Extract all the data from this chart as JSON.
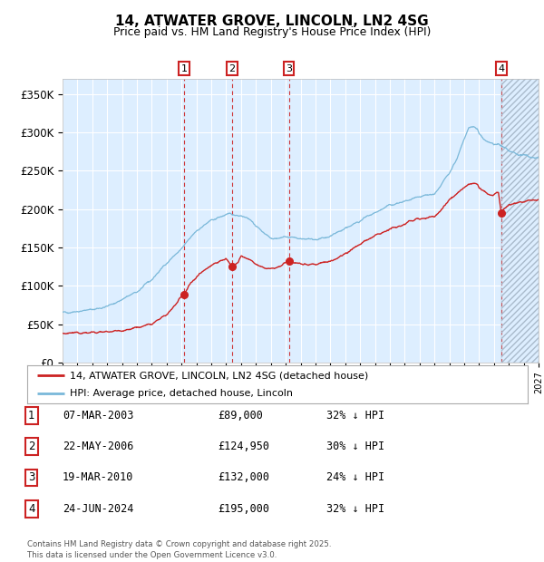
{
  "title": "14, ATWATER GROVE, LINCOLN, LN2 4SG",
  "subtitle": "Price paid vs. HM Land Registry's House Price Index (HPI)",
  "hpi_color": "#7ab8d9",
  "price_color": "#cc2222",
  "background_color": "#ddeeff",
  "grid_color": "#ffffff",
  "xlim_start": 1995,
  "xlim_end": 2027,
  "ylim_min": 0,
  "ylim_max": 370000,
  "yticks": [
    0,
    50000,
    100000,
    150000,
    200000,
    250000,
    300000,
    350000
  ],
  "ytick_labels": [
    "£0",
    "£50K",
    "£100K",
    "£150K",
    "£200K",
    "£250K",
    "£300K",
    "£350K"
  ],
  "sale_dates": [
    2003.18,
    2006.38,
    2010.21,
    2024.48
  ],
  "sale_prices": [
    89000,
    124950,
    132000,
    195000
  ],
  "sale_labels": [
    "1",
    "2",
    "3",
    "4"
  ],
  "sale_date_strs": [
    "07-MAR-2003",
    "22-MAY-2006",
    "19-MAR-2010",
    "24-JUN-2024"
  ],
  "sale_price_strs": [
    "£89,000",
    "£124,950",
    "£132,000",
    "£195,000"
  ],
  "sale_hpi_strs": [
    "32% ↓ HPI",
    "30% ↓ HPI",
    "24% ↓ HPI",
    "32% ↓ HPI"
  ],
  "legend_line1": "14, ATWATER GROVE, LINCOLN, LN2 4SG (detached house)",
  "legend_line2": "HPI: Average price, detached house, Lincoln",
  "footer": "Contains HM Land Registry data © Crown copyright and database right 2025.\nThis data is licensed under the Open Government Licence v3.0.",
  "hpi_anchors": [
    [
      1995,
      65000
    ],
    [
      1996,
      67000
    ],
    [
      1997,
      69000
    ],
    [
      1998,
      73000
    ],
    [
      1999,
      82000
    ],
    [
      2000,
      92000
    ],
    [
      2001,
      108000
    ],
    [
      2002,
      130000
    ],
    [
      2003,
      148000
    ],
    [
      2004,
      172000
    ],
    [
      2005,
      185000
    ],
    [
      2006,
      193000
    ],
    [
      2007,
      192000
    ],
    [
      2007.5,
      188000
    ],
    [
      2008,
      178000
    ],
    [
      2008.5,
      170000
    ],
    [
      2009,
      163000
    ],
    [
      2009.5,
      162000
    ],
    [
      2010,
      164000
    ],
    [
      2010.5,
      163000
    ],
    [
      2011,
      161000
    ],
    [
      2011.5,
      160000
    ],
    [
      2012,
      161000
    ],
    [
      2012.5,
      162000
    ],
    [
      2013,
      165000
    ],
    [
      2013.5,
      170000
    ],
    [
      2014,
      175000
    ],
    [
      2014.5,
      180000
    ],
    [
      2015,
      185000
    ],
    [
      2015.5,
      190000
    ],
    [
      2016,
      195000
    ],
    [
      2016.5,
      200000
    ],
    [
      2017,
      205000
    ],
    [
      2017.5,
      207000
    ],
    [
      2018,
      210000
    ],
    [
      2018.5,
      212000
    ],
    [
      2019,
      215000
    ],
    [
      2019.5,
      218000
    ],
    [
      2020,
      220000
    ],
    [
      2020.5,
      232000
    ],
    [
      2021,
      248000
    ],
    [
      2021.5,
      265000
    ],
    [
      2022,
      290000
    ],
    [
      2022.3,
      305000
    ],
    [
      2022.6,
      308000
    ],
    [
      2022.9,
      303000
    ],
    [
      2023,
      298000
    ],
    [
      2023.3,
      292000
    ],
    [
      2023.6,
      288000
    ],
    [
      2023.9,
      285000
    ],
    [
      2024,
      283000
    ],
    [
      2024.3,
      285000
    ],
    [
      2024.5,
      282000
    ],
    [
      2024.8,
      278000
    ],
    [
      2025,
      275000
    ],
    [
      2025.5,
      272000
    ],
    [
      2026,
      270000
    ],
    [
      2026.5,
      268000
    ],
    [
      2027,
      267000
    ]
  ],
  "price_anchors": [
    [
      1995,
      38000
    ],
    [
      1996,
      38500
    ],
    [
      1997,
      39000
    ],
    [
      1998,
      40000
    ],
    [
      1999,
      42000
    ],
    [
      2000,
      45000
    ],
    [
      2001,
      50000
    ],
    [
      2002,
      62000
    ],
    [
      2003.18,
      89000
    ],
    [
      2003.5,
      100000
    ],
    [
      2004,
      112000
    ],
    [
      2004.5,
      120000
    ],
    [
      2005,
      127000
    ],
    [
      2005.5,
      132000
    ],
    [
      2006,
      135000
    ],
    [
      2006.38,
      124950
    ],
    [
      2006.8,
      130000
    ],
    [
      2007,
      138000
    ],
    [
      2007.5,
      135000
    ],
    [
      2008,
      128000
    ],
    [
      2008.5,
      123000
    ],
    [
      2009,
      122000
    ],
    [
      2009.5,
      124000
    ],
    [
      2010.21,
      132000
    ],
    [
      2010.5,
      131000
    ],
    [
      2011,
      129000
    ],
    [
      2011.5,
      128000
    ],
    [
      2012,
      128000
    ],
    [
      2012.5,
      130000
    ],
    [
      2013,
      132000
    ],
    [
      2013.5,
      136000
    ],
    [
      2014,
      142000
    ],
    [
      2014.5,
      148000
    ],
    [
      2015,
      154000
    ],
    [
      2015.5,
      160000
    ],
    [
      2016,
      165000
    ],
    [
      2016.5,
      170000
    ],
    [
      2017,
      174000
    ],
    [
      2017.5,
      177000
    ],
    [
      2018,
      180000
    ],
    [
      2018.3,
      184000
    ],
    [
      2018.6,
      186000
    ],
    [
      2018.9,
      188000
    ],
    [
      2019,
      187000
    ],
    [
      2019.3,
      188000
    ],
    [
      2019.6,
      189000
    ],
    [
      2019.9,
      190000
    ],
    [
      2020,
      190000
    ],
    [
      2020.5,
      200000
    ],
    [
      2021,
      212000
    ],
    [
      2021.5,
      220000
    ],
    [
      2022,
      228000
    ],
    [
      2022.3,
      232000
    ],
    [
      2022.6,
      234000
    ],
    [
      2022.9,
      232000
    ],
    [
      2023,
      228000
    ],
    [
      2023.3,
      224000
    ],
    [
      2023.6,
      220000
    ],
    [
      2023.9,
      218000
    ],
    [
      2024,
      218000
    ],
    [
      2024.1,
      220000
    ],
    [
      2024.3,
      222000
    ],
    [
      2024.48,
      195000
    ],
    [
      2024.7,
      200000
    ],
    [
      2025,
      205000
    ],
    [
      2025.5,
      208000
    ],
    [
      2026,
      210000
    ],
    [
      2026.5,
      212000
    ],
    [
      2027,
      213000
    ]
  ]
}
